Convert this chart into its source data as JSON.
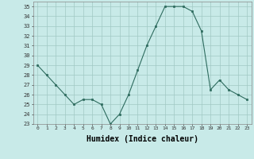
{
  "x": [
    0,
    1,
    2,
    3,
    4,
    5,
    6,
    7,
    8,
    9,
    10,
    11,
    12,
    13,
    14,
    15,
    16,
    17,
    18,
    19,
    20,
    21,
    22,
    23
  ],
  "y": [
    29,
    28,
    27,
    26,
    25,
    25.5,
    25.5,
    25,
    23,
    24,
    26,
    28.5,
    31,
    33,
    35,
    35,
    35,
    34.5,
    32.5,
    26.5,
    27.5,
    26.5,
    26,
    25.5
  ],
  "line_color": "#2d6b5e",
  "marker_color": "#2d6b5e",
  "bg_color": "#c8eae8",
  "grid_color": "#a0c8c4",
  "xlabel": "Humidex (Indice chaleur)",
  "xlabel_fontsize": 7,
  "yticks": [
    23,
    24,
    25,
    26,
    27,
    28,
    29,
    30,
    31,
    32,
    33,
    34,
    35
  ],
  "xticks": [
    0,
    1,
    2,
    3,
    4,
    5,
    6,
    7,
    8,
    9,
    10,
    11,
    12,
    13,
    14,
    15,
    16,
    17,
    18,
    19,
    20,
    21,
    22,
    23
  ],
  "xlim": [
    -0.5,
    23.5
  ],
  "ylim": [
    23,
    35.5
  ]
}
